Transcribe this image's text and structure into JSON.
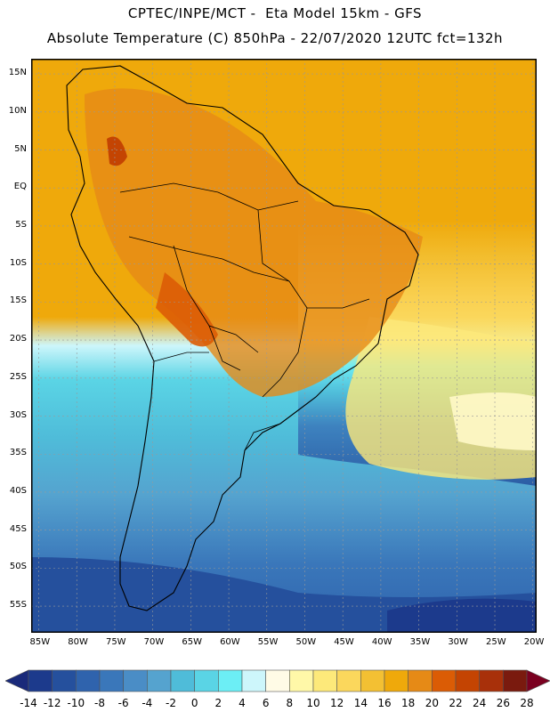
{
  "header": {
    "line1": "CPTEC/INPE/MCT -  Eta Model 15km - GFS",
    "line2": "Absolute Temperature (C) 850hPa - 22/07/2020 12UTC fct=132h"
  },
  "map": {
    "lat_labels": [
      "15N",
      "10N",
      "5N",
      "EQ",
      "5S",
      "10S",
      "15S",
      "20S",
      "25S",
      "30S",
      "35S",
      "40S",
      "45S",
      "50S",
      "55S"
    ],
    "lon_labels": [
      "85W",
      "80W",
      "75W",
      "70W",
      "65W",
      "60W",
      "55W",
      "50W",
      "45W",
      "40W",
      "35W",
      "30W",
      "25W",
      "20W"
    ],
    "lat_values": [
      15,
      10,
      5,
      0,
      -5,
      -10,
      -15,
      -20,
      -25,
      -30,
      -35,
      -40,
      -45,
      -50,
      -55
    ],
    "lon_values": [
      -85,
      -80,
      -75,
      -70,
      -65,
      -60,
      -55,
      -50,
      -45,
      -40,
      -35,
      -30,
      -25,
      -20
    ]
  },
  "colorbar": {
    "labels": [
      "-14",
      "-12",
      "-10",
      "-8",
      "-6",
      "-4",
      "-2",
      "0",
      "2",
      "4",
      "6",
      "8",
      "10",
      "12",
      "14",
      "16",
      "18",
      "20",
      "22",
      "24",
      "26",
      "28"
    ],
    "colors": [
      "#1c3a8c",
      "#25509d",
      "#2f63ad",
      "#3a77ba",
      "#4a8dc6",
      "#55a3cf",
      "#4fbcd9",
      "#5ad4e5",
      "#6ceef5",
      "#cdf6fb",
      "#fffbe6",
      "#fff8a8",
      "#fde97a",
      "#fbd75c",
      "#f3c033",
      "#efa90b",
      "#e68a16",
      "#db5c05",
      "#c44402",
      "#a8300a",
      "#7a1a0e"
    ],
    "under_color": "#1a2a7a",
    "over_color": "#7a0020"
  }
}
